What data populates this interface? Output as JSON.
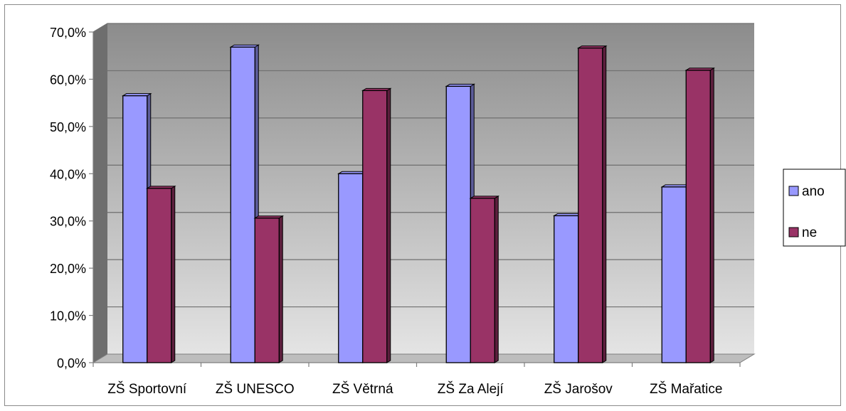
{
  "chart_data": {
    "type": "bar",
    "title": "",
    "xlabel": "",
    "ylabel": "",
    "categories": [
      "ZŠ Sportovní",
      "ZŠ UNESCO",
      "ZŠ Větrná",
      "ZŠ Za Alejí",
      "ZŠ Jarošov",
      "ZŠ Mařatice"
    ],
    "series": [
      {
        "name": "ano",
        "values": [
          56.5,
          66.8,
          40.0,
          58.5,
          31.1,
          37.2
        ]
      },
      {
        "name": "ne",
        "values": [
          36.9,
          30.6,
          57.6,
          34.8,
          66.6,
          61.9
        ]
      }
    ],
    "ylim": [
      0,
      70
    ],
    "yticks": [
      0,
      10,
      20,
      30,
      40,
      50,
      60,
      70
    ],
    "ytick_labels": [
      "0,0%",
      "10,0%",
      "20,0%",
      "30,0%",
      "40,0%",
      "50,0%",
      "60,0%",
      "70,0%"
    ],
    "grid": true,
    "legend": "right",
    "style": "3d-clustered-column",
    "colors": {
      "ano": "#9999ff",
      "ano_side": "#5c5c99",
      "ne": "#993366",
      "ne_side": "#5c1f3d",
      "plot_wall_top": "#8c8c8c",
      "plot_wall_bottom": "#e4e4e4"
    }
  }
}
